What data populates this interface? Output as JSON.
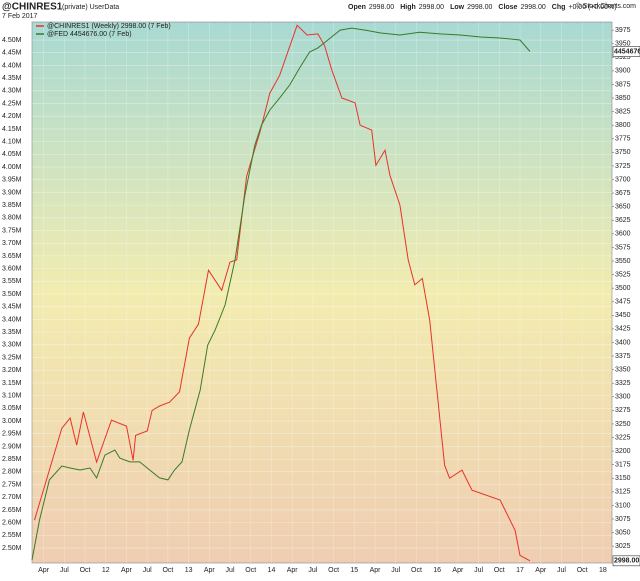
{
  "chart_data": {
    "type": "line",
    "title": "@CHINRES1",
    "subtitle": "(private) UserData",
    "date": "7 Feb 2017",
    "quote": [
      {
        "label": "Open",
        "value": "2998.00"
      },
      {
        "label": "High",
        "value": "2998.00"
      },
      {
        "label": "Low",
        "value": "2998.00"
      },
      {
        "label": "Close",
        "value": "2998.00"
      },
      {
        "label": "Chg",
        "value": "+0.00 (+0.00%)"
      }
    ],
    "credit": "© StockCharts.com",
    "xlim": [
      2011.11,
      2018.11
    ],
    "xticks": [
      {
        "value": 2011.25,
        "label": "Apr"
      },
      {
        "value": 2011.5,
        "label": "Jul"
      },
      {
        "value": 2011.75,
        "label": "Oct"
      },
      {
        "value": 2012,
        "label": "12"
      },
      {
        "value": 2012.25,
        "label": "Apr"
      },
      {
        "value": 2012.5,
        "label": "Jul"
      },
      {
        "value": 2012.75,
        "label": "Oct"
      },
      {
        "value": 2013,
        "label": "13"
      },
      {
        "value": 2013.25,
        "label": "Apr"
      },
      {
        "value": 2013.5,
        "label": "Jul"
      },
      {
        "value": 2013.75,
        "label": "Oct"
      },
      {
        "value": 2014,
        "label": "14"
      },
      {
        "value": 2014.25,
        "label": "Apr"
      },
      {
        "value": 2014.5,
        "label": "Jul"
      },
      {
        "value": 2014.75,
        "label": "Oct"
      },
      {
        "value": 2015,
        "label": "15"
      },
      {
        "value": 2015.25,
        "label": "Apr"
      },
      {
        "value": 2015.5,
        "label": "Jul"
      },
      {
        "value": 2015.75,
        "label": "Oct"
      },
      {
        "value": 2016,
        "label": "16"
      },
      {
        "value": 2016.25,
        "label": "Apr"
      },
      {
        "value": 2016.5,
        "label": "Jul"
      },
      {
        "value": 2016.75,
        "label": "Oct"
      },
      {
        "value": 2017,
        "label": "17"
      },
      {
        "value": 2017.25,
        "label": "Apr"
      },
      {
        "value": 2017.5,
        "label": "Jul"
      },
      {
        "value": 2017.75,
        "label": "Oct"
      },
      {
        "value": 2018,
        "label": "18"
      }
    ],
    "ylim": [
      2441000,
      4571000
    ],
    "yticks": [
      {
        "value": 2500000,
        "label": "2.50M"
      },
      {
        "value": 2550000,
        "label": "2.55M"
      },
      {
        "value": 2600000,
        "label": "2.60M"
      },
      {
        "value": 2650000,
        "label": "2.65M"
      },
      {
        "value": 2700000,
        "label": "2.70M"
      },
      {
        "value": 2750000,
        "label": "2.75M"
      },
      {
        "value": 2800000,
        "label": "2.80M"
      },
      {
        "value": 2850000,
        "label": "2.85M"
      },
      {
        "value": 2900000,
        "label": "2.90M"
      },
      {
        "value": 2950000,
        "label": "2.95M"
      },
      {
        "value": 3000000,
        "label": "3.00M"
      },
      {
        "value": 3050000,
        "label": "3.05M"
      },
      {
        "value": 3100000,
        "label": "3.10M"
      },
      {
        "value": 3150000,
        "label": "3.15M"
      },
      {
        "value": 3200000,
        "label": "3.20M"
      },
      {
        "value": 3250000,
        "label": "3.25M"
      },
      {
        "value": 3300000,
        "label": "3.30M"
      },
      {
        "value": 3350000,
        "label": "3.35M"
      },
      {
        "value": 3400000,
        "label": "3.40M"
      },
      {
        "value": 3450000,
        "label": "3.45M"
      },
      {
        "value": 3500000,
        "label": "3.50M"
      },
      {
        "value": 3550000,
        "label": "3.55M"
      },
      {
        "value": 3600000,
        "label": "3.60M"
      },
      {
        "value": 3650000,
        "label": "3.65M"
      },
      {
        "value": 3700000,
        "label": "3.70M"
      },
      {
        "value": 3750000,
        "label": "3.75M"
      },
      {
        "value": 3800000,
        "label": "3.80M"
      },
      {
        "value": 3850000,
        "label": "3.85M"
      },
      {
        "value": 3900000,
        "label": "3.90M"
      },
      {
        "value": 3950000,
        "label": "3.95M"
      },
      {
        "value": 4000000,
        "label": "4.00M"
      },
      {
        "value": 4050000,
        "label": "4.05M"
      },
      {
        "value": 4100000,
        "label": "4.10M"
      },
      {
        "value": 4150000,
        "label": "4.15M"
      },
      {
        "value": 4200000,
        "label": "4.20M"
      },
      {
        "value": 4250000,
        "label": "4.25M"
      },
      {
        "value": 4300000,
        "label": "4.30M"
      },
      {
        "value": 4350000,
        "label": "4.35M"
      },
      {
        "value": 4400000,
        "label": "4.40M"
      },
      {
        "value": 4450000,
        "label": "4.45M"
      },
      {
        "value": 4500000,
        "label": "4.50M"
      }
    ],
    "y2lim": [
      2994,
      3990
    ],
    "y2ticks": [
      3025,
      3050,
      3075,
      3100,
      3125,
      3150,
      3175,
      3200,
      3225,
      3250,
      3275,
      3300,
      3325,
      3350,
      3375,
      3400,
      3425,
      3450,
      3475,
      3500,
      3525,
      3550,
      3575,
      3600,
      3625,
      3650,
      3675,
      3700,
      3725,
      3750,
      3775,
      3800,
      3825,
      3850,
      3875,
      3900,
      3925,
      3950,
      3975
    ],
    "grid": true,
    "series": [
      {
        "name": "@CHINRES1 (Weekly) 2998.00 (7 Feb)",
        "color": "#e8322a",
        "axis": "y2",
        "last_value_label": "2998.00",
        "x": [
          2011.14,
          2011.47,
          2011.57,
          2011.65,
          2011.73,
          2011.89,
          2012.07,
          2012.25,
          2012.33,
          2012.36,
          2012.5,
          2012.56,
          2012.65,
          2012.77,
          2012.89,
          2013.01,
          2013.12,
          2013.24,
          2013.4,
          2013.5,
          2013.58,
          2013.7,
          2013.86,
          2013.98,
          2014.1,
          2014.31,
          2014.43,
          2014.56,
          2014.64,
          2014.73,
          2014.85,
          2015.01,
          2015.07,
          2015.21,
          2015.26,
          2015.37,
          2015.43,
          2015.55,
          2015.65,
          2015.73,
          2015.82,
          2015.91,
          2016.09,
          2016.15,
          2016.3,
          2016.42,
          2016.76,
          2016.94,
          2017.0,
          2017.12
        ],
        "values": [
          3073,
          3242,
          3261,
          3211,
          3272,
          3180,
          3257,
          3246,
          3183,
          3229,
          3237,
          3275,
          3283,
          3290,
          3309,
          3408,
          3434,
          3533,
          3496,
          3548,
          3552,
          3706,
          3787,
          3859,
          3892,
          3984,
          3966,
          3968,
          3947,
          3901,
          3850,
          3841,
          3800,
          3791,
          3726,
          3754,
          3708,
          3653,
          3552,
          3506,
          3518,
          3441,
          3174,
          3150,
          3165,
          3128,
          3110,
          3054,
          3008,
          2998
        ]
      },
      {
        "name": "@FED 4454676.00 (7 Feb)",
        "color": "#3a7a2a",
        "axis": "y",
        "last_value_label": "4454676",
        "x": [
          2011.11,
          2011.2,
          2011.32,
          2011.47,
          2011.57,
          2011.69,
          2011.81,
          2011.89,
          2011.99,
          2012.11,
          2012.17,
          2012.29,
          2012.41,
          2012.53,
          2012.65,
          2012.75,
          2012.83,
          2012.92,
          2013.01,
          2013.14,
          2013.23,
          2013.32,
          2013.44,
          2013.56,
          2013.68,
          2013.8,
          2013.88,
          2013.98,
          2014.1,
          2014.22,
          2014.34,
          2014.46,
          2014.56,
          2014.68,
          2014.83,
          2014.97,
          2015.13,
          2015.31,
          2015.55,
          2015.79,
          2016.03,
          2016.28,
          2016.52,
          2016.76,
          2017.0,
          2017.12
        ],
        "values": [
          2453000,
          2610000,
          2768000,
          2823000,
          2815000,
          2807000,
          2815000,
          2776000,
          2866000,
          2886000,
          2854000,
          2839000,
          2839000,
          2807000,
          2776000,
          2768000,
          2807000,
          2839000,
          2965000,
          3122000,
          3299000,
          3358000,
          3457000,
          3634000,
          3890000,
          4087000,
          4165000,
          4224000,
          4272000,
          4323000,
          4390000,
          4453000,
          4469000,
          4500000,
          4539000,
          4547000,
          4539000,
          4528000,
          4520000,
          4531000,
          4524000,
          4520000,
          4512000,
          4508000,
          4500000,
          4454676
        ]
      }
    ]
  }
}
